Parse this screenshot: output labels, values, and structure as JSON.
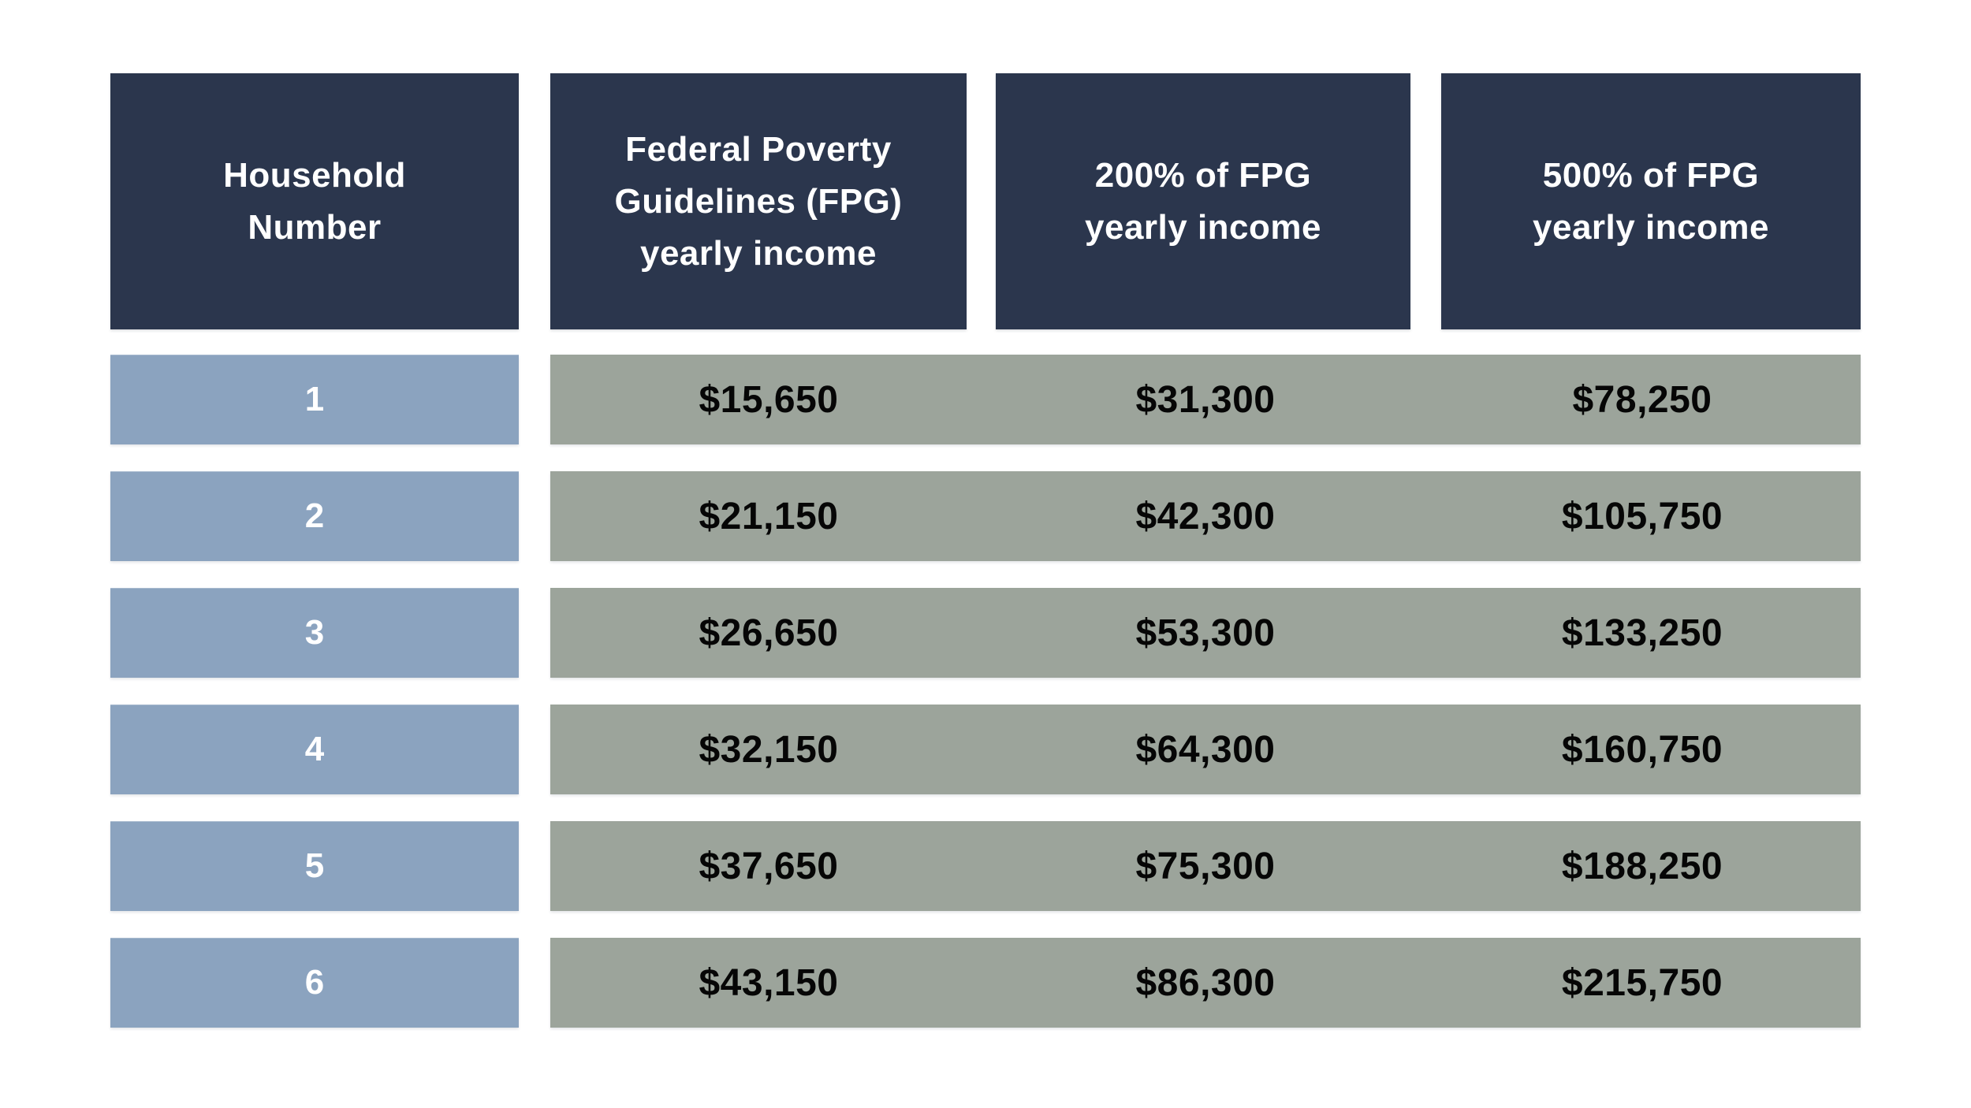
{
  "table": {
    "headers": [
      "Household\nNumber",
      "Federal Poverty\nGuidelines (FPG)\nyearly income",
      "200% of FPG\nyearly income",
      "500% of FPG\nyearly income"
    ],
    "rows": [
      {
        "household": "1",
        "fpg": "$15,650",
        "fpg200": "$31,300",
        "fpg500": "$78,250"
      },
      {
        "household": "2",
        "fpg": "$21,150",
        "fpg200": "$42,300",
        "fpg500": "$105,750"
      },
      {
        "household": "3",
        "fpg": "$26,650",
        "fpg200": "$53,300",
        "fpg500": "$133,250"
      },
      {
        "household": "4",
        "fpg": "$32,150",
        "fpg200": "$64,300",
        "fpg500": "$160,750"
      },
      {
        "household": "5",
        "fpg": "$37,650",
        "fpg200": "$75,300",
        "fpg500": "$188,250"
      },
      {
        "household": "6",
        "fpg": "$43,150",
        "fpg200": "$86,300",
        "fpg500": "$215,750"
      }
    ]
  },
  "colors": {
    "header_bg": "#2b364d",
    "row_label_bg": "#8ba3bf",
    "value_band_bg": "#9ca49b",
    "header_text": "#ffffff",
    "value_text": "#060606",
    "background": "#ffffff"
  },
  "chart_data": {
    "type": "table",
    "columns": [
      "Household Number",
      "Federal Poverty Guidelines (FPG) yearly income",
      "200% of FPG yearly income",
      "500% of FPG yearly income"
    ],
    "rows": [
      [
        1,
        "$15,650",
        "$31,300",
        "$78,250"
      ],
      [
        2,
        "$21,150",
        "$42,300",
        "$105,750"
      ],
      [
        3,
        "$26,650",
        "$53,300",
        "$133,250"
      ],
      [
        4,
        "$32,150",
        "$64,300",
        "$160,750"
      ],
      [
        5,
        "$37,650",
        "$75,300",
        "$188,250"
      ],
      [
        6,
        "$43,150",
        "$86,300",
        "$215,750"
      ]
    ],
    "notes": {
      "fpg_values_numeric": [
        15650,
        21150,
        26650,
        32150,
        37650,
        43150
      ],
      "fpg200_values_numeric": [
        31300,
        42300,
        53300,
        64300,
        75300,
        86300
      ],
      "fpg500_values_numeric": [
        78250,
        105750,
        133250,
        160750,
        188250,
        215750
      ]
    }
  }
}
